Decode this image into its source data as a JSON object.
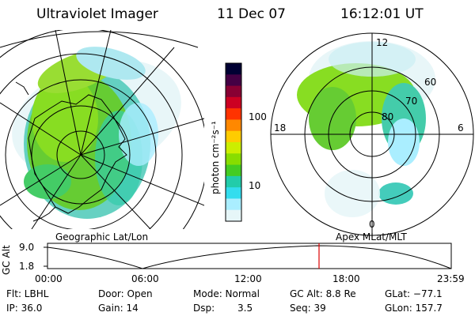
{
  "header": {
    "title": "Ultraviolet Imager",
    "date": "11 Dec 07",
    "time": "16:12:01 UT"
  },
  "colorbar": {
    "unit_label": "photon cm⁻²s⁻¹",
    "ticks": [
      "100",
      "10"
    ],
    "colors": [
      "#000033",
      "#440044",
      "#880033",
      "#cc0022",
      "#ff3300",
      "#ff8800",
      "#ffcc00",
      "#ccee00",
      "#88dd00",
      "#44cc22",
      "#22ccaa",
      "#33ddee",
      "#aaeeff",
      "#e6f6f8"
    ]
  },
  "left_map": {
    "caption": "Geographic Lat/Lon"
  },
  "right_map": {
    "caption": "Apex MLat/MLT",
    "mlt_labels": {
      "top": "12",
      "left": "18",
      "right": "6",
      "bottom": "0"
    },
    "lat_labels": [
      "60",
      "70",
      "80"
    ]
  },
  "timeline": {
    "ylabel": "GC Alt",
    "yticks": [
      "9.0",
      "1.8"
    ],
    "xticks": [
      "00:00",
      "06:00",
      "12:00",
      "18:00",
      "23:59"
    ],
    "marker_color": "#dd0000"
  },
  "status": {
    "flt": "Flt: LBHL",
    "ip": "IP: 36.0",
    "door": "Door: Open",
    "gain": "Gain: 14",
    "mode": "Mode: Normal",
    "dsp_label": "Dsp:",
    "dsp_value": "3.5",
    "gc_alt": "GC Alt: 8.8 Re",
    "seq": "Seq: 39",
    "glat": "GLat: −77.1",
    "glon": "GLon: 157.7"
  }
}
